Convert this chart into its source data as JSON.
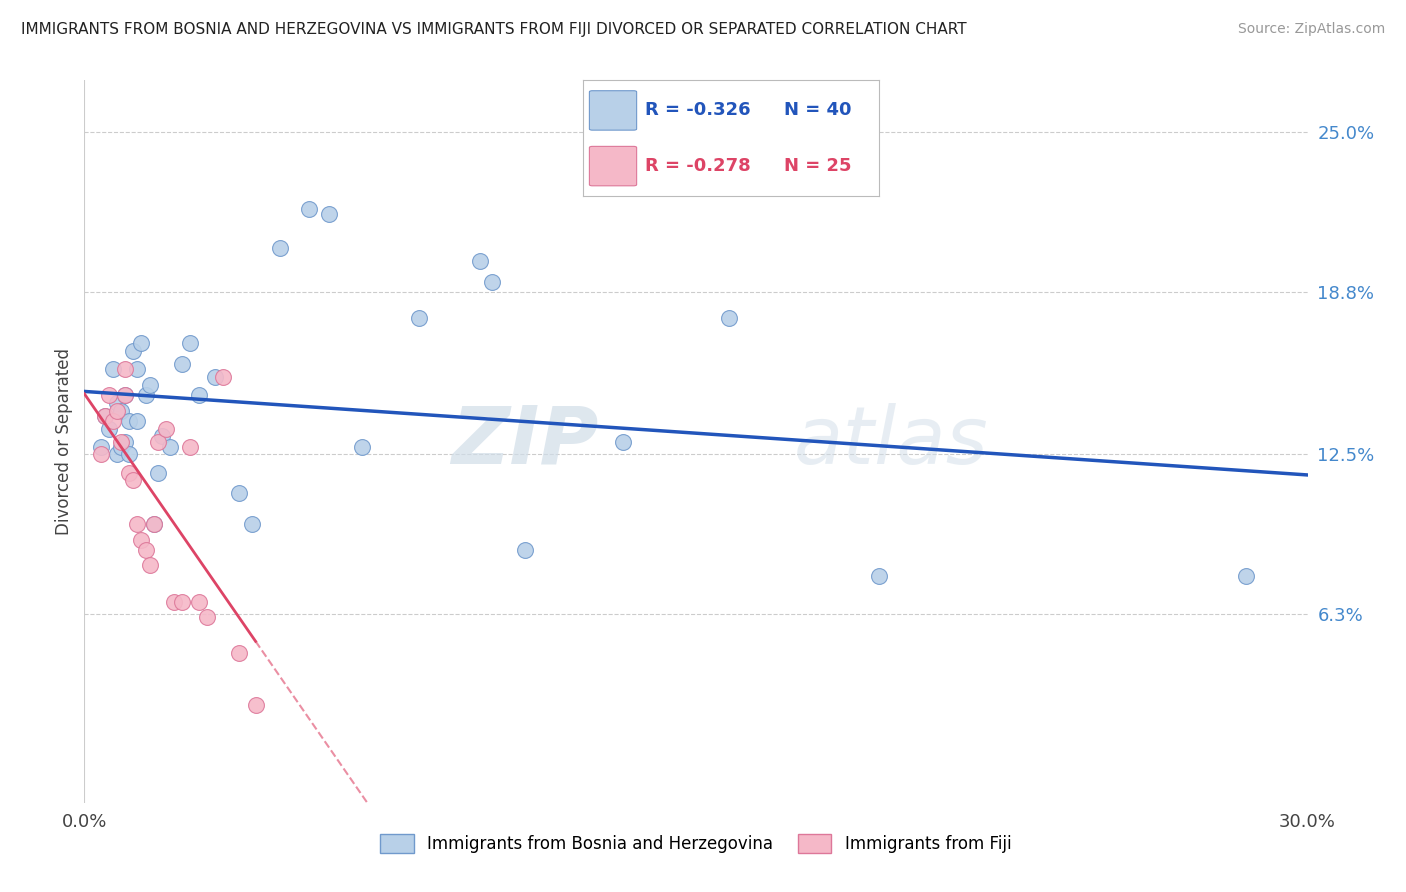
{
  "title": "IMMIGRANTS FROM BOSNIA AND HERZEGOVINA VS IMMIGRANTS FROM FIJI DIVORCED OR SEPARATED CORRELATION CHART",
  "source": "Source: ZipAtlas.com",
  "ylabel": "Divorced or Separated",
  "xlim": [
    0.0,
    0.3
  ],
  "ylim": [
    -0.01,
    0.27
  ],
  "xticks": [
    0.0,
    0.05,
    0.1,
    0.15,
    0.2,
    0.25,
    0.3
  ],
  "xtick_labels": [
    "0.0%",
    "",
    "",
    "",
    "",
    "",
    "30.0%"
  ],
  "ytick_right_labels": [
    "6.3%",
    "12.5%",
    "18.8%",
    "25.0%"
  ],
  "ytick_right_values": [
    0.063,
    0.125,
    0.188,
    0.25
  ],
  "series1_label": "Immigrants from Bosnia and Herzegovina",
  "series2_label": "Immigrants from Fiji",
  "series1_color": "#b8d0e8",
  "series2_color": "#f5b8c8",
  "series1_edge_color": "#7099cc",
  "series2_edge_color": "#dd7799",
  "trendline1_color": "#2255bb",
  "trendline2_color": "#dd4466",
  "watermark": "ZIPatlas",
  "watermark_color": "#ccd8e8",
  "background_color": "#ffffff",
  "legend1_r": "R = -0.326",
  "legend1_n": "N = 40",
  "legend2_r": "R = -0.278",
  "legend2_n": "N = 25",
  "bosnia_x": [
    0.004,
    0.005,
    0.006,
    0.007,
    0.008,
    0.008,
    0.009,
    0.009,
    0.01,
    0.01,
    0.011,
    0.011,
    0.012,
    0.013,
    0.013,
    0.014,
    0.015,
    0.016,
    0.017,
    0.018,
    0.019,
    0.021,
    0.024,
    0.026,
    0.028,
    0.032,
    0.038,
    0.041,
    0.048,
    0.055,
    0.06,
    0.068,
    0.082,
    0.097,
    0.1,
    0.108,
    0.132,
    0.158,
    0.195,
    0.285
  ],
  "bosnia_y": [
    0.128,
    0.14,
    0.135,
    0.158,
    0.125,
    0.145,
    0.128,
    0.142,
    0.13,
    0.148,
    0.125,
    0.138,
    0.165,
    0.138,
    0.158,
    0.168,
    0.148,
    0.152,
    0.098,
    0.118,
    0.132,
    0.128,
    0.16,
    0.168,
    0.148,
    0.155,
    0.11,
    0.098,
    0.205,
    0.22,
    0.218,
    0.128,
    0.178,
    0.2,
    0.192,
    0.088,
    0.13,
    0.178,
    0.078,
    0.078
  ],
  "fiji_x": [
    0.004,
    0.005,
    0.006,
    0.007,
    0.008,
    0.009,
    0.01,
    0.01,
    0.011,
    0.012,
    0.013,
    0.014,
    0.015,
    0.016,
    0.017,
    0.018,
    0.02,
    0.022,
    0.024,
    0.026,
    0.028,
    0.03,
    0.034,
    0.038,
    0.042
  ],
  "fiji_y": [
    0.125,
    0.14,
    0.148,
    0.138,
    0.142,
    0.13,
    0.148,
    0.158,
    0.118,
    0.115,
    0.098,
    0.092,
    0.088,
    0.082,
    0.098,
    0.13,
    0.135,
    0.068,
    0.068,
    0.128,
    0.068,
    0.062,
    0.155,
    0.048,
    0.028
  ]
}
